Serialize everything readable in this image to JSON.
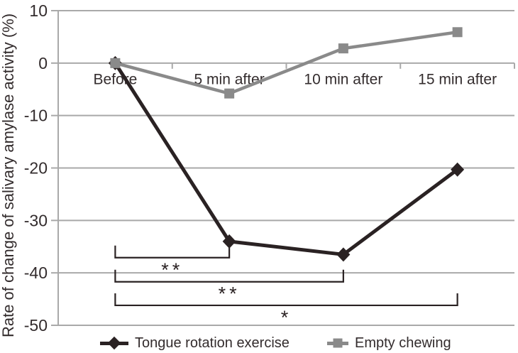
{
  "chart_data": {
    "type": "line",
    "title": "",
    "ylabel": "Rate of change of salivary amylase activity (%)",
    "xlabel": "",
    "categories": [
      "Before",
      "5 min after",
      "10 min after",
      "15 min after"
    ],
    "series": [
      {
        "name": "Tongue rotation exercise",
        "marker": "diamond",
        "color": "#2a2223",
        "line_width": 5,
        "values": [
          0,
          -34,
          -36.5,
          -20.3
        ]
      },
      {
        "name": "Empty chewing",
        "marker": "square",
        "color": "#8a8a8a",
        "line_width": 4.5,
        "values": [
          0,
          -5.8,
          2.8,
          5.9
        ]
      }
    ],
    "yticks": [
      10,
      0,
      -10,
      -20,
      -30,
      -40,
      -50
    ],
    "ylim": [
      -50,
      10
    ],
    "grid": true,
    "legend_position": "bottom",
    "annotations": [
      {
        "from_category": "Before",
        "to_category": "5 min after",
        "label": "**",
        "bar_value": -37.1
      },
      {
        "from_category": "Before",
        "to_category": "10 min after",
        "label": "**",
        "bar_value": -41.7
      },
      {
        "from_category": "Before",
        "to_category": "15 min after",
        "label": "*",
        "bar_value": -46.2
      }
    ],
    "colors": {
      "grid": "#a9a9a9",
      "axis": "#a9a9a9",
      "text": "#332c2d",
      "annotation": "#2a2223"
    }
  }
}
